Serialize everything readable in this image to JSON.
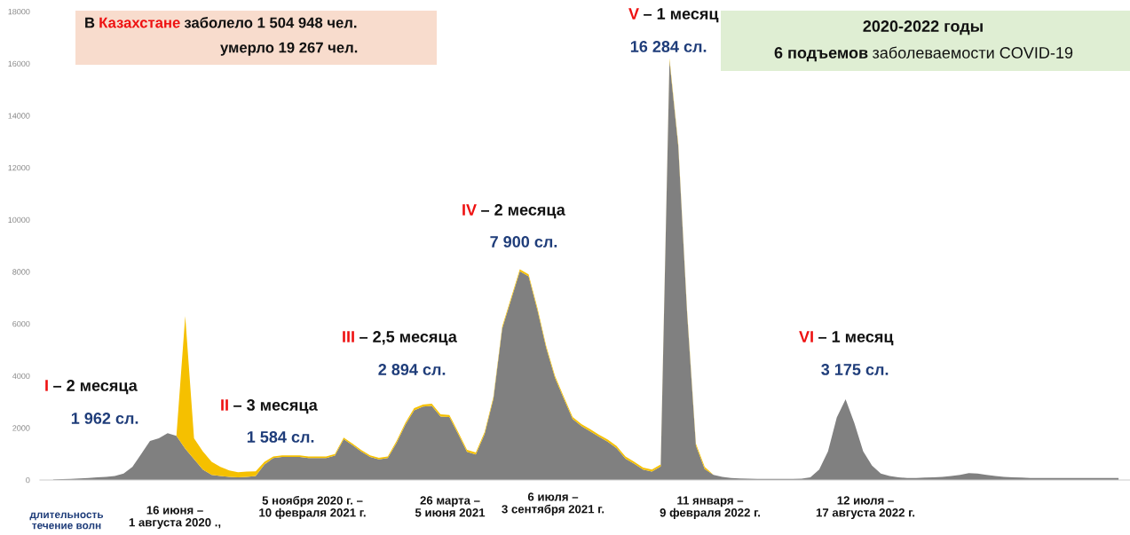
{
  "chart_data": {
    "type": "area",
    "stacked": true,
    "categories": [
      null,
      null,
      null,
      null,
      null,
      null,
      null,
      null,
      null,
      null,
      null,
      null,
      null,
      null,
      null,
      null,
      null,
      null,
      null,
      null,
      null,
      null,
      null,
      null,
      null,
      null,
      null,
      null,
      null,
      null,
      null,
      null,
      null,
      null,
      null,
      null,
      null,
      null,
      null,
      null,
      null,
      null,
      null,
      null,
      null,
      null,
      null,
      null,
      null,
      null,
      null,
      null,
      null,
      null,
      null,
      null,
      null,
      null,
      null,
      null,
      null,
      null,
      null,
      null,
      null,
      null,
      null,
      null,
      null,
      null,
      null,
      null,
      null,
      null,
      null,
      null,
      null,
      null,
      null,
      null,
      null,
      null,
      null,
      null,
      null,
      null,
      null,
      null,
      null,
      null,
      null,
      null,
      null,
      null,
      null,
      null,
      null,
      null,
      null,
      null,
      null,
      null,
      null,
      null,
      null,
      null,
      null,
      null,
      null,
      null,
      null,
      null,
      null,
      null,
      null,
      null,
      null,
      null,
      null,
      null,
      null,
      null
    ],
    "series": [
      {
        "color": "#808080",
        "values": [
          20,
          30,
          40,
          60,
          80,
          100,
          120,
          150,
          250,
          500,
          1000,
          1500,
          1600,
          1800,
          1700,
          1200,
          800,
          400,
          200,
          150,
          120,
          100,
          120,
          150,
          600,
          840,
          890,
          890,
          890,
          840,
          840,
          840,
          940,
          1570,
          1340,
          1090,
          890,
          790,
          840,
          1420,
          2120,
          2680,
          2820,
          2850,
          2440,
          2420,
          1760,
          1080,
          980,
          1760,
          3120,
          5820,
          6920,
          8020,
          7820,
          6530,
          5070,
          3920,
          3120,
          2340,
          2070,
          1870,
          1660,
          1470,
          1220,
          820,
          620,
          400,
          320,
          520,
          16120,
          12820,
          6420,
          1320,
          420,
          200,
          120,
          80,
          60,
          50,
          40,
          40,
          40,
          40,
          40,
          50,
          100,
          400,
          1100,
          2400,
          3100,
          2180,
          1100,
          550,
          250,
          150,
          100,
          80,
          80,
          90,
          100,
          120,
          150,
          200,
          260,
          250,
          200,
          150,
          120,
          100,
          90,
          80,
          80,
          80,
          80,
          80,
          80,
          80,
          80,
          80,
          80,
          80
        ]
      },
      {
        "color": "#f5c000",
        "values": [
          0,
          0,
          0,
          0,
          0,
          0,
          0,
          0,
          0,
          0,
          0,
          0,
          0,
          0,
          0,
          5100,
          800,
          700,
          500,
          350,
          250,
          200,
          200,
          180,
          100,
          60,
          60,
          60,
          60,
          60,
          60,
          60,
          60,
          60,
          60,
          60,
          60,
          60,
          60,
          80,
          80,
          80,
          80,
          80,
          80,
          80,
          80,
          80,
          80,
          80,
          80,
          80,
          80,
          80,
          80,
          80,
          80,
          80,
          80,
          80,
          80,
          80,
          80,
          80,
          80,
          80,
          80,
          80,
          80,
          80,
          80,
          80,
          80,
          80,
          80,
          0,
          0,
          0,
          0,
          0,
          0,
          0,
          0,
          0,
          0,
          0,
          0,
          0,
          0,
          0,
          0,
          0,
          0,
          0,
          0,
          0,
          0,
          0,
          0,
          0,
          0,
          0,
          0,
          0,
          0,
          0,
          0,
          0,
          0,
          0,
          0,
          0,
          0,
          0,
          0,
          0,
          0,
          0,
          0,
          0,
          0,
          0
        ]
      }
    ],
    "ylim": [
      0,
      18000
    ],
    "yticks": [
      0,
      2000,
      4000,
      6000,
      8000,
      10000,
      12000,
      14000,
      16000,
      18000
    ],
    "tick_labels": "y",
    "annotations": [
      "В",
      "Казахстане",
      "заболело 1 504 948 чел.",
      "умерло 19 267 чел.",
      "2020-2022 годы",
      "6 подъемов",
      "заболеваемости COVID-19",
      "I",
      "– 2 месяца",
      "1 962 сл.",
      "II",
      "– 3 месяца",
      "1 584 сл.",
      "III",
      "– 2,5 месяца",
      "2 894 сл.",
      "IV",
      "– 2 месяца",
      "7 900 сл.",
      "V",
      "– 1 месяц",
      "16 284 сл.",
      "VI",
      "– 1 месяц",
      "3 175 сл.",
      "длительность\nтечение волн",
      "16 июня –\n1 августа 2020 .,",
      "5 ноября 2020 г. –\n10 февраля 2021 г.",
      "26 марта –\n5 июня 2021",
      "6 июля –\n3 сентября 2021 г.",
      "11 января –\n9 февраля 2022 г.",
      "12 июля –\n17 августа 2022 г."
    ]
  }
}
